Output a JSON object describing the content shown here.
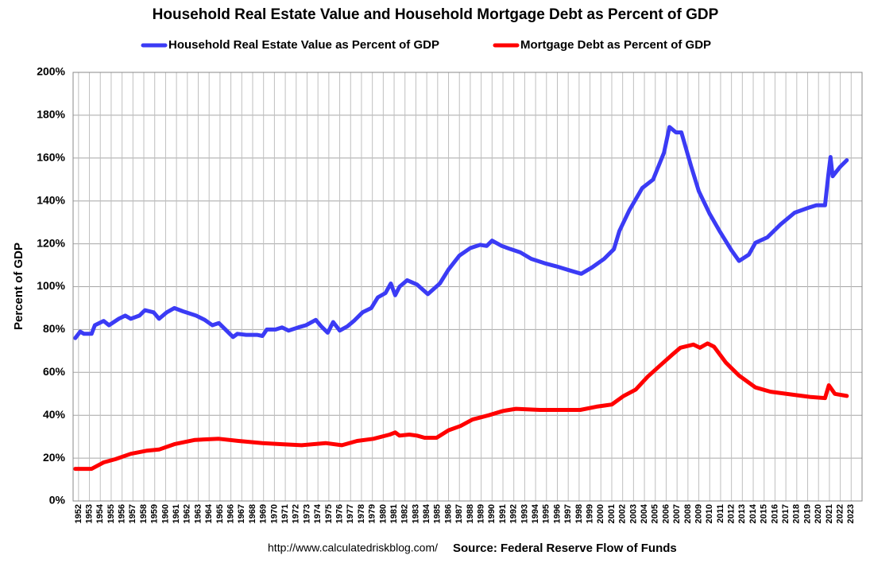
{
  "chart_data": {
    "type": "line",
    "title": "Household Real Estate Value and Household Mortgage Debt as Percent of GDP",
    "y_label": "Percent of GDP",
    "source_url": "http://www.calculatedriskblog.com/",
    "source": "Source: Federal Reserve Flow of Funds",
    "legend": "top",
    "grid": true,
    "xlim": [
      1951.5,
      2024
    ],
    "xticks": [
      1952,
      1953,
      1954,
      1955,
      1956,
      1957,
      1958,
      1959,
      1960,
      1961,
      1962,
      1963,
      1964,
      1965,
      1966,
      1967,
      1968,
      1969,
      1970,
      1971,
      1972,
      1973,
      1974,
      1975,
      1976,
      1977,
      1978,
      1979,
      1980,
      1981,
      1982,
      1983,
      1984,
      1985,
      1986,
      1987,
      1988,
      1989,
      1990,
      1991,
      1992,
      1993,
      1994,
      1995,
      1996,
      1997,
      1998,
      1999,
      2000,
      2001,
      2002,
      2003,
      2004,
      2005,
      2006,
      2007,
      2008,
      2009,
      2010,
      2011,
      2012,
      2013,
      2014,
      2015,
      2016,
      2017,
      2018,
      2019,
      2020,
      2021,
      2022,
      2023
    ],
    "ylim": [
      0,
      200
    ],
    "yticks": [
      {
        "value": 0,
        "label": "0%"
      },
      {
        "value": 20,
        "label": "20%"
      },
      {
        "value": 40,
        "label": "40%"
      },
      {
        "value": 60,
        "label": "60%"
      },
      {
        "value": 80,
        "label": "80%"
      },
      {
        "value": 100,
        "label": "100%"
      },
      {
        "value": 120,
        "label": "120%"
      },
      {
        "value": 140,
        "label": "140%"
      },
      {
        "value": 160,
        "label": "160%"
      },
      {
        "value": 180,
        "label": "180%"
      },
      {
        "value": 200,
        "label": "200%"
      }
    ],
    "series": [
      {
        "name": "Household Real Estate Value as Percent of GDP",
        "color": "#3b3bf5",
        "x": [
          1951.7,
          1952.15,
          1952.5,
          1953.2,
          1953.5,
          1954.3,
          1954.8,
          1955.7,
          1956.3,
          1956.8,
          1957.6,
          1958.1,
          1958.9,
          1959.4,
          1960.1,
          1960.8,
          1961.6,
          1962.8,
          1963.6,
          1964.3,
          1964.9,
          1966.2,
          1966.6,
          1967.4,
          1968.4,
          1968.9,
          1969.3,
          1970.1,
          1970.7,
          1971.3,
          1972.2,
          1972.9,
          1973.8,
          1974.3,
          1974.9,
          1975.4,
          1976.0,
          1976.7,
          1977.3,
          1978.1,
          1978.9,
          1979.5,
          1980.2,
          1980.7,
          1981.1,
          1981.5,
          1982.2,
          1983.1,
          1984.1,
          1985.2,
          1986.0,
          1987.0,
          1988.0,
          1988.9,
          1989.5,
          1990.0,
          1990.9,
          1991.7,
          1992.6,
          1993.6,
          1994.8,
          1995.9,
          1997.2,
          1998.2,
          1999.2,
          2000.3,
          2001.2,
          2001.7,
          2002.6,
          2003.8,
          2004.8,
          2005.8,
          2006.3,
          2006.9,
          2007.4,
          2008.3,
          2009.0,
          2010.0,
          2010.9,
          2012.0,
          2012.7,
          2013.6,
          2014.2,
          2015.3,
          2016.5,
          2017.8,
          2018.9,
          2019.8,
          2020.6,
          2020.9,
          2021.1,
          2021.3,
          2022.0,
          2022.6
        ],
        "values": [
          76,
          79,
          78,
          78,
          82,
          84,
          82,
          85,
          86.5,
          85,
          86.5,
          89,
          88,
          85,
          88,
          90,
          88.5,
          86.5,
          84.5,
          82,
          83,
          76.5,
          78,
          77.5,
          77.5,
          77,
          80,
          80,
          81,
          79.5,
          81,
          82,
          84.5,
          81.5,
          78.5,
          83.5,
          79.5,
          81.5,
          84,
          88,
          90,
          95,
          97,
          101.5,
          96,
          100,
          103,
          101,
          96.5,
          101.5,
          108,
          114.5,
          118,
          119.5,
          119,
          121.5,
          119,
          117.5,
          116,
          113,
          111,
          109.5,
          107.5,
          106,
          109,
          113,
          117.5,
          126,
          135.5,
          146,
          150,
          162.5,
          174.5,
          172,
          172,
          156,
          144.5,
          134,
          126,
          117,
          112,
          115,
          120.5,
          123,
          129,
          134.5,
          136.5,
          138,
          138,
          152,
          160.5,
          151.5,
          156,
          159
        ]
      },
      {
        "name": "Mortgage Debt as Percent of GDP",
        "color": "#ff0000",
        "x": [
          1951.7,
          1953.2,
          1954.3,
          1955.4,
          1956.8,
          1958.3,
          1959.4,
          1960.8,
          1962.7,
          1964.9,
          1966.7,
          1968.9,
          1970.7,
          1972.5,
          1974.7,
          1976.2,
          1977.6,
          1979.1,
          1980.6,
          1981.1,
          1981.5,
          1982.4,
          1983.1,
          1983.8,
          1984.9,
          1986.0,
          1987.1,
          1988.2,
          1989.7,
          1991.0,
          1992.2,
          1994.4,
          1995.9,
          1998.1,
          1999.6,
          2001.0,
          2002.1,
          2003.2,
          2004.3,
          2005.4,
          2006.5,
          2007.3,
          2008.5,
          2009.1,
          2009.8,
          2010.4,
          2011.5,
          2012.7,
          2014.2,
          2015.6,
          2017.8,
          2019.3,
          2020.6,
          2020.95,
          2021.5,
          2022.6
        ],
        "values": [
          15,
          15,
          18,
          19.5,
          22,
          23.5,
          24,
          26.5,
          28.5,
          29,
          28,
          27,
          26.5,
          26,
          27,
          26,
          28,
          29,
          31,
          32,
          30.5,
          31,
          30.5,
          29.5,
          29.5,
          33,
          35,
          38,
          40,
          42,
          43,
          42.5,
          42.5,
          42.5,
          44,
          45,
          49,
          52,
          58,
          63,
          68,
          71.5,
          73,
          71.5,
          73.5,
          72,
          64.5,
          58.5,
          53,
          51,
          49.5,
          48.5,
          48,
          54,
          50,
          49
        ]
      }
    ]
  }
}
